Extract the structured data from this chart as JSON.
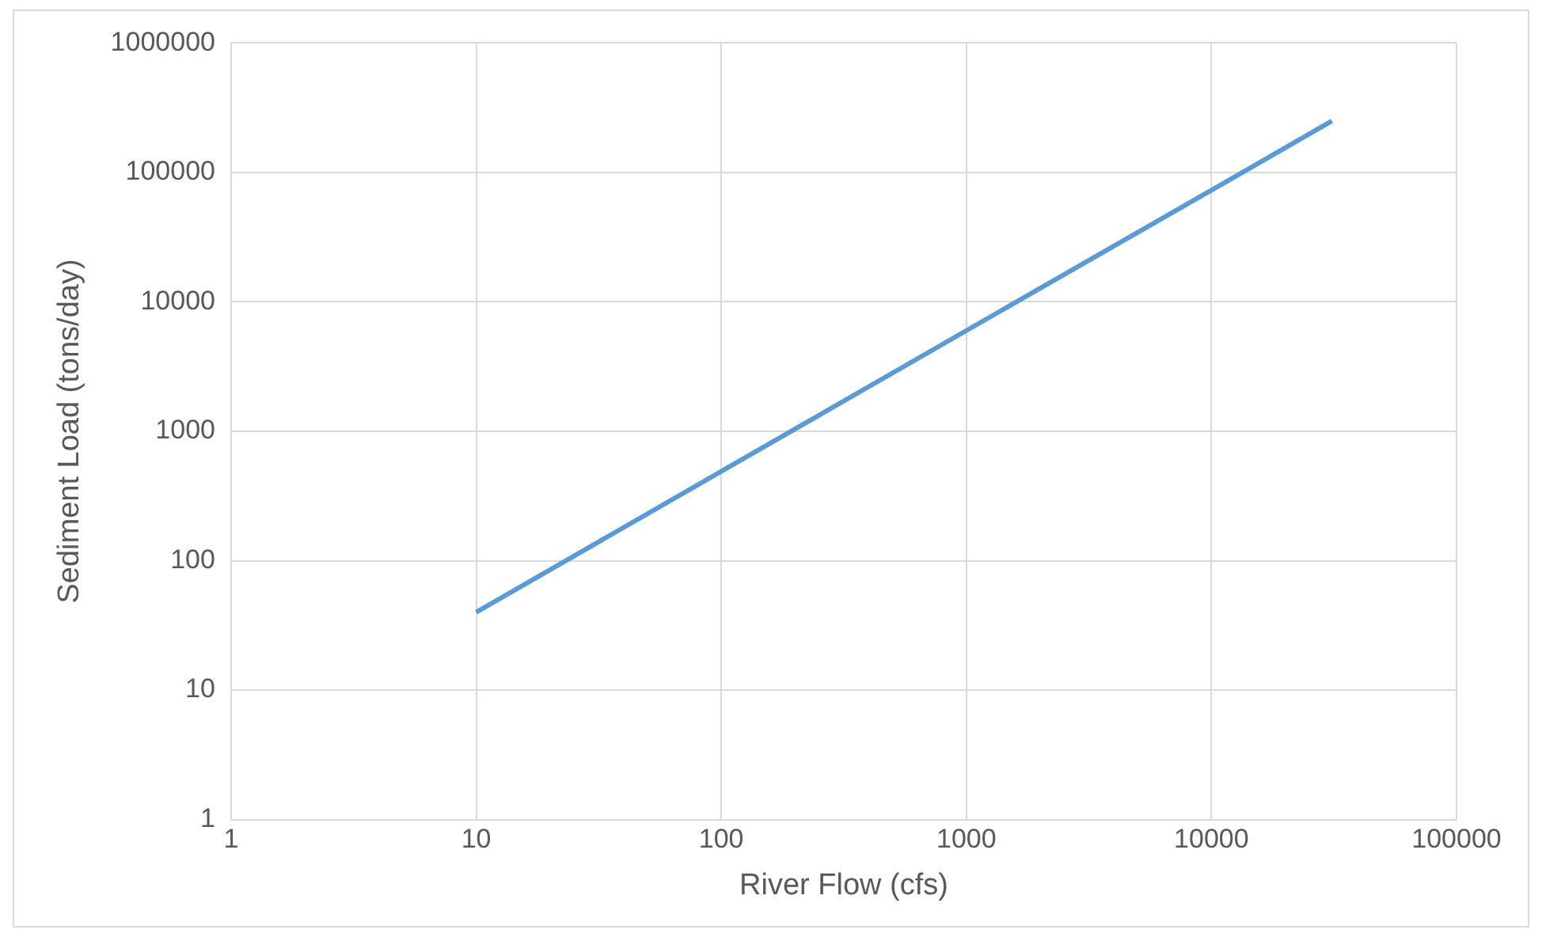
{
  "chart_data": {
    "type": "line",
    "xlabel": "River Flow (cfs)",
    "ylabel": "Sediment Load (tons/day)",
    "x": [
      10,
      100,
      1000,
      10000,
      31000
    ],
    "series": [
      {
        "color": "#5b9bd5",
        "values": [
          40,
          490,
          6000,
          73000,
          250000
        ]
      }
    ],
    "log": "xy",
    "xlim": [
      1,
      100000
    ],
    "xticks": [
      1,
      10,
      100,
      1000,
      10000,
      100000
    ],
    "ylim": [
      1,
      1000000
    ],
    "yticks": [
      1,
      10,
      100,
      1000,
      10000,
      100000,
      1000000
    ],
    "grid": true,
    "legend": false,
    "marker": "none",
    "line_style": "solid"
  }
}
